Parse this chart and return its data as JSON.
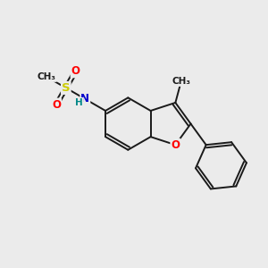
{
  "bg_color": "#ebebeb",
  "bond_color": "#1a1a1a",
  "atom_colors": {
    "O": "#ff0000",
    "N": "#0000cc",
    "S": "#cccc00",
    "H": "#008888",
    "C": "#1a1a1a"
  },
  "font_size": 8.5,
  "line_width": 1.4
}
